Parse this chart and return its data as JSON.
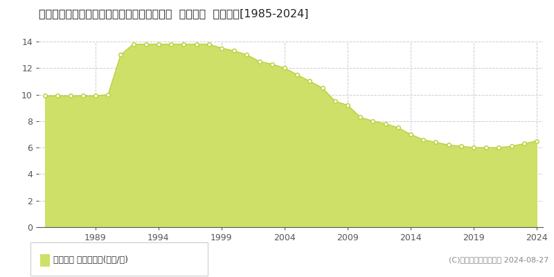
{
  "title": "大分県大分市大字海原字新田１００５番９外  地価公示  地価推移[1985-2024]",
  "years": [
    1985,
    1986,
    1987,
    1988,
    1989,
    1990,
    1991,
    1992,
    1993,
    1994,
    1995,
    1996,
    1997,
    1998,
    1999,
    2000,
    2001,
    2002,
    2003,
    2004,
    2005,
    2006,
    2007,
    2008,
    2009,
    2010,
    2011,
    2012,
    2013,
    2014,
    2015,
    2016,
    2017,
    2018,
    2019,
    2020,
    2021,
    2022,
    2023,
    2024
  ],
  "values": [
    9.9,
    9.9,
    9.9,
    9.9,
    9.9,
    10.0,
    13.0,
    13.8,
    13.8,
    13.8,
    13.8,
    13.8,
    13.8,
    13.8,
    13.5,
    13.3,
    13.0,
    12.5,
    12.3,
    12.0,
    11.5,
    11.0,
    10.5,
    9.5,
    9.2,
    8.3,
    8.0,
    7.8,
    7.5,
    7.0,
    6.6,
    6.4,
    6.2,
    6.1,
    6.0,
    6.0,
    6.0,
    6.1,
    6.3,
    6.5
  ],
  "area_color": "#cfe068",
  "line_color": "#bdd040",
  "marker_facecolor": "#ffffff",
  "marker_edgecolor": "#bdd040",
  "ylim": [
    0,
    14
  ],
  "yticks": [
    0,
    2,
    4,
    6,
    8,
    10,
    12,
    14
  ],
  "xticks": [
    1989,
    1994,
    1999,
    2004,
    2009,
    2014,
    2019,
    2024
  ],
  "background_color": "#ffffff",
  "grid_color": "#cccccc",
  "legend_label": "地価公示 平均坪単価(万円/坪)",
  "legend_square_color": "#cfe068",
  "copyright_text": "(C)土地価格ドットコム 2024-08-27",
  "title_fontsize": 11.5,
  "tick_fontsize": 9,
  "legend_fontsize": 9,
  "copyright_fontsize": 8
}
